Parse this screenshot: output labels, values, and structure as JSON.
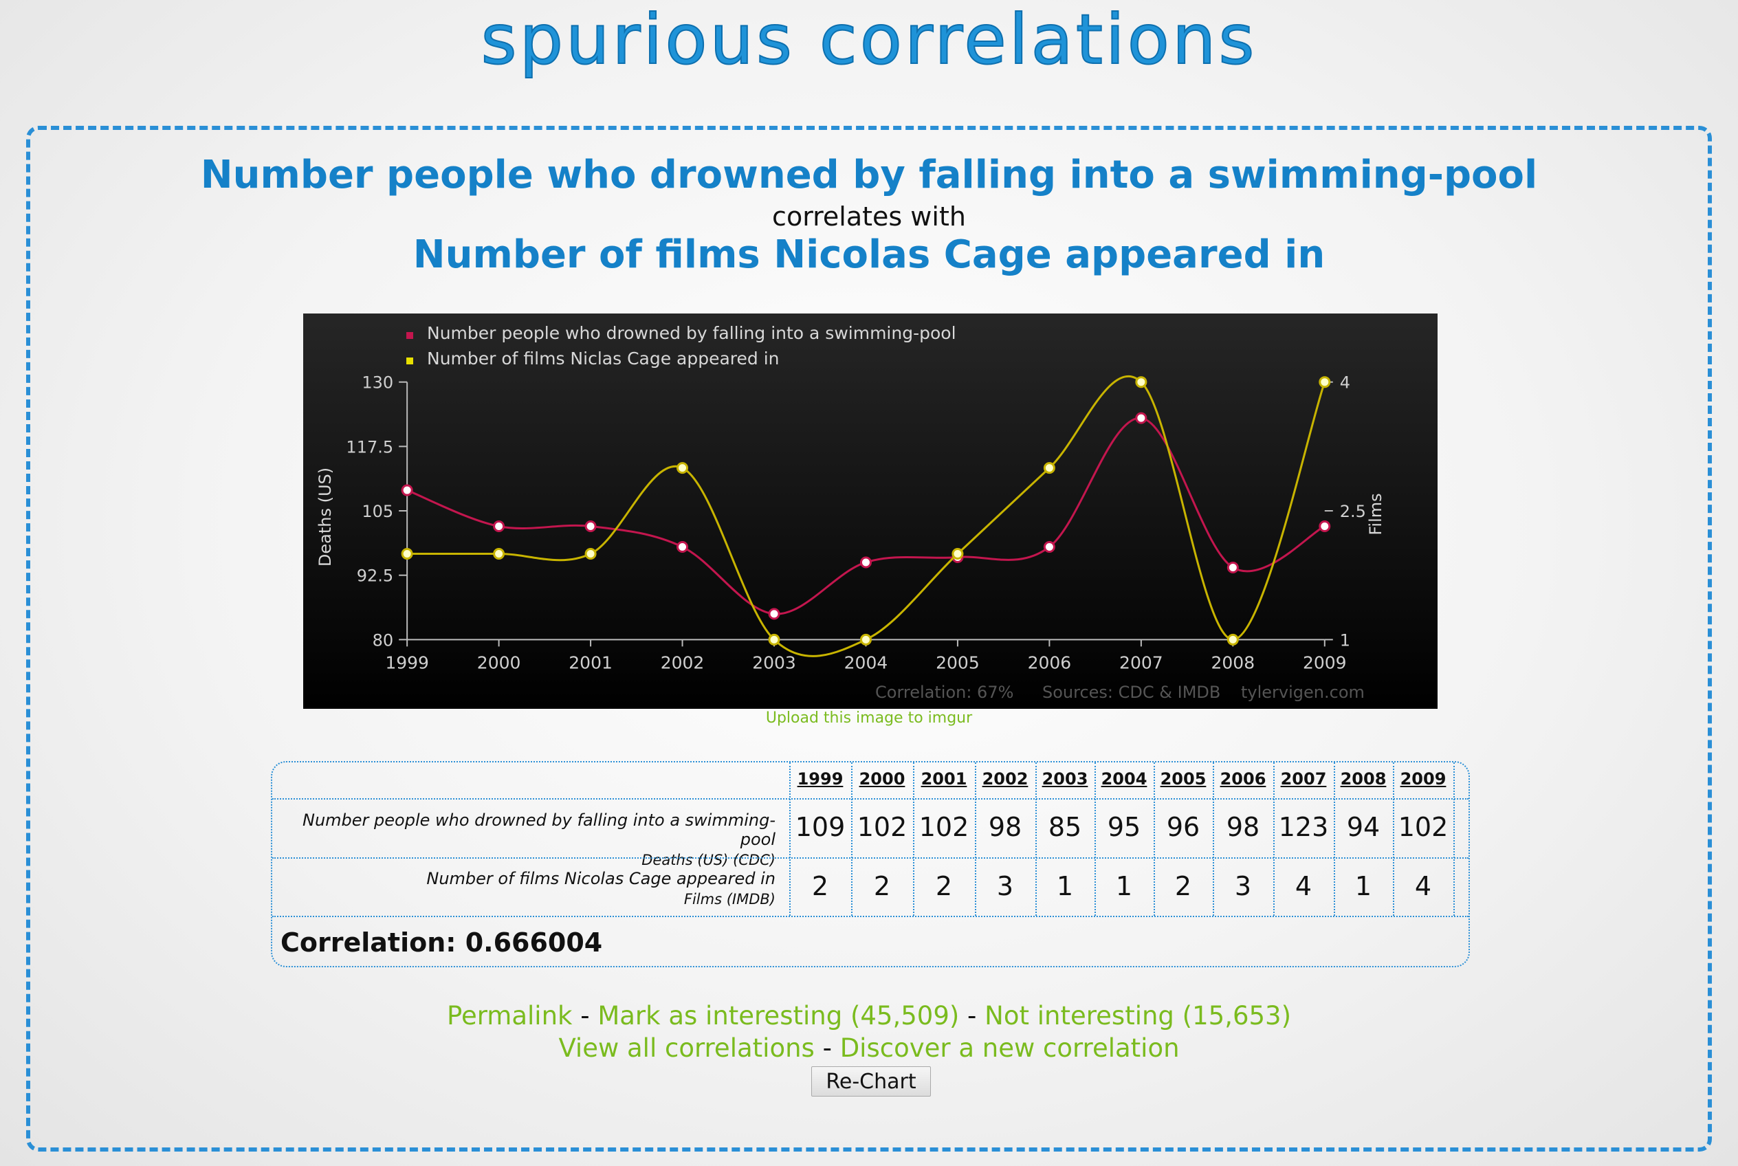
{
  "site": {
    "logo_text": "spurious correlations"
  },
  "correlation": {
    "var1_title": "Number people who drowned by falling into a swimming-pool",
    "connector": "correlates with",
    "var2_title": "Number of films Nicolas Cage appeared in"
  },
  "chart_data": {
    "type": "line",
    "x": [
      "1999",
      "2000",
      "2001",
      "2002",
      "2003",
      "2004",
      "2005",
      "2006",
      "2007",
      "2008",
      "2009"
    ],
    "series": [
      {
        "name": "Number people who drowned by falling into a swimming-pool",
        "axis": "left",
        "values": [
          109,
          102,
          102,
          98,
          85,
          95,
          96,
          98,
          123,
          94,
          102
        ],
        "color": "#c3164e"
      },
      {
        "name": "Number of films Niclas Cage appeared in",
        "axis": "right",
        "values": [
          2,
          2,
          2,
          3,
          1,
          1,
          2,
          3,
          4,
          1,
          4
        ],
        "color": "#c8b400"
      }
    ],
    "left_axis": {
      "label": "Deaths (US)",
      "range": [
        80,
        130
      ],
      "ticks": [
        "80",
        "92.5",
        "105",
        "117.5",
        "130"
      ]
    },
    "right_axis": {
      "label": "Films",
      "range": [
        1,
        4
      ],
      "ticks": [
        "1",
        "2.5",
        "4"
      ]
    },
    "footer": {
      "correlation": "Correlation: 67%",
      "sources": "Sources: CDC & IMDB",
      "site": "tylervigen.com"
    },
    "legend_position": "top-left",
    "background": "#000000"
  },
  "upload_link": "Upload this image to imgur",
  "table": {
    "years": [
      "1999",
      "2000",
      "2001",
      "2002",
      "2003",
      "2004",
      "2005",
      "2006",
      "2007",
      "2008",
      "2009"
    ],
    "rows": [
      {
        "label": "Number people who drowned by falling into a swimming-pool",
        "unit": "Deaths (US) (CDC)",
        "values": [
          "109",
          "102",
          "102",
          "98",
          "85",
          "95",
          "96",
          "98",
          "123",
          "94",
          "102"
        ]
      },
      {
        "label": "Number of films Nicolas Cage appeared in",
        "unit": "Films (IMDB)",
        "values": [
          "2",
          "2",
          "2",
          "3",
          "1",
          "1",
          "2",
          "3",
          "4",
          "1",
          "4"
        ]
      }
    ],
    "correlation_text": "Correlation: 0.666004"
  },
  "links": {
    "permalink": "Permalink",
    "mark_interesting": "Mark as interesting (45,509)",
    "not_interesting": "Not interesting (15,653)",
    "view_all": "View all correlations",
    "discover": "Discover a new correlation",
    "separator": " - "
  },
  "rechart_button": "Re-Chart",
  "colors": {
    "title_blue": "#1581c8",
    "link_green": "#7abb1e",
    "dash_blue": "#2a8fd6"
  }
}
